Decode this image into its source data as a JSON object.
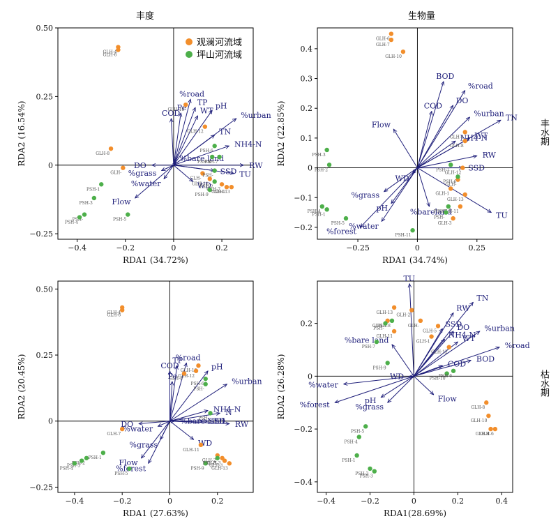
{
  "column_titles": [
    "丰度",
    "生物量"
  ],
  "row_titles": [
    "丰水期",
    "枯水期"
  ],
  "legend": [
    {
      "label": "观澜河流域",
      "color": "#f28e2b"
    },
    {
      "label": "坪山河流域",
      "color": "#4daf4a"
    }
  ],
  "colors": {
    "guanlan": "#f28e2b",
    "pingshan": "#4daf4a",
    "arrow": "#1f1f7a",
    "axis": "#000000"
  },
  "chart_data": [
    {
      "type": "scatter",
      "title": "丰度",
      "xlabel": "RDA1 (34.72%)",
      "ylabel": "RDA2 (16.54%)",
      "xlim": [
        -0.48,
        0.33
      ],
      "ylim": [
        -0.27,
        0.5
      ],
      "xticks": [
        -0.4,
        -0.2,
        0,
        0.2
      ],
      "yticks": [
        -0.25,
        0,
        0.25,
        0.5
      ],
      "tick_labels_x": [
        "−0.4",
        "−0.2",
        "0",
        "0.2"
      ],
      "tick_labels_y": [
        "−0.25",
        "0",
        "0.25",
        "0.50"
      ],
      "show_legend": true,
      "points": [
        {
          "label": "GLH-4",
          "x": -0.23,
          "y": 0.43,
          "g": "guanlan"
        },
        {
          "label": "GLH-6",
          "x": -0.23,
          "y": 0.42,
          "g": "guanlan"
        },
        {
          "label": "GLH-10",
          "x": 0.05,
          "y": 0.22,
          "g": "guanlan"
        },
        {
          "label": "GLH-12",
          "x": 0.13,
          "y": 0.14,
          "g": "guanlan"
        },
        {
          "label": "GLH-8",
          "x": -0.26,
          "y": 0.06,
          "g": "guanlan"
        },
        {
          "label": "GLH-",
          "x": -0.21,
          "y": -0.01,
          "g": "guanlan"
        },
        {
          "label": "GLH-",
          "x": 0.12,
          "y": -0.03,
          "g": "guanlan"
        },
        {
          "label": "GLH-11",
          "x": 0.15,
          "y": -0.05,
          "g": "guanlan"
        },
        {
          "label": "GLH-7",
          "x": 0.2,
          "y": -0.07,
          "g": "guanlan"
        },
        {
          "label": "GLH-1",
          "x": 0.22,
          "y": -0.08,
          "g": "guanlan"
        },
        {
          "label": "GLH-13",
          "x": 0.24,
          "y": -0.08,
          "g": "guanlan"
        },
        {
          "label": "PSH-6",
          "x": 0.17,
          "y": 0.07,
          "g": "pingshan"
        },
        {
          "label": "PSH-8",
          "x": 0.16,
          "y": 0.03,
          "g": "pingshan"
        },
        {
          "label": "PSH-7",
          "x": 0.19,
          "y": 0.03,
          "g": "pingshan"
        },
        {
          "label": "PSH-",
          "x": 0.17,
          "y": -0.02,
          "g": "pingshan"
        },
        {
          "label": "PSH-2",
          "x": 0.17,
          "y": -0.06,
          "g": "pingshan"
        },
        {
          "label": "PSH-9",
          "x": 0.15,
          "y": -0.09,
          "g": "pingshan"
        },
        {
          "label": "PSH-1",
          "x": -0.3,
          "y": -0.07,
          "g": "pingshan"
        },
        {
          "label": "PSH-3",
          "x": -0.33,
          "y": -0.12,
          "g": "pingshan"
        },
        {
          "label": "PSH-",
          "x": -0.37,
          "y": -0.18,
          "g": "pingshan"
        },
        {
          "label": "PSH-4",
          "x": -0.39,
          "y": -0.19,
          "g": "pingshan"
        },
        {
          "label": "PSH-5",
          "x": -0.19,
          "y": -0.18,
          "g": "pingshan"
        }
      ],
      "vectors": [
        {
          "label": "%road",
          "x": 0.07,
          "y": 0.24
        },
        {
          "label": "TP",
          "x": 0.09,
          "y": 0.21
        },
        {
          "label": "Pe",
          "x": 0.03,
          "y": 0.19
        },
        {
          "label": "COD",
          "x": -0.01,
          "y": 0.17
        },
        {
          "label": "WT",
          "x": 0.1,
          "y": 0.18
        },
        {
          "label": "pH",
          "x": 0.16,
          "y": 0.2
        },
        {
          "label": "%urban",
          "x": 0.26,
          "y": 0.17
        },
        {
          "label": "TN",
          "x": 0.17,
          "y": 0.11
        },
        {
          "label": "NH4-N",
          "x": 0.23,
          "y": 0.07
        },
        {
          "label": "%bare land",
          "x": 0.01,
          "y": 0.01
        },
        {
          "label": "RW",
          "x": 0.29,
          "y": 0.0
        },
        {
          "label": "TU",
          "x": 0.25,
          "y": -0.03
        },
        {
          "label": "SSD",
          "x": 0.17,
          "y": -0.02
        },
        {
          "label": "WD",
          "x": 0.08,
          "y": -0.06
        },
        {
          "label": "DO",
          "x": -0.09,
          "y": 0.0
        },
        {
          "label": "%grass",
          "x": -0.05,
          "y": -0.02
        },
        {
          "label": "%water",
          "x": -0.04,
          "y": -0.05
        },
        {
          "label": "Flow",
          "x": -0.16,
          "y": -0.12
        }
      ]
    },
    {
      "type": "scatter",
      "title": "生物量",
      "xlabel": "RDA1 (34.74%)",
      "ylabel": "RDA2 (22.85%)",
      "xlim": [
        -0.42,
        0.4
      ],
      "ylim": [
        -0.24,
        0.47
      ],
      "xticks": [
        -0.25,
        0,
        0.25
      ],
      "yticks": [
        -0.2,
        -0.1,
        0,
        0.1,
        0.2,
        0.3,
        0.4
      ],
      "tick_labels_x": [
        "−0.25",
        "0",
        "0.25"
      ],
      "tick_labels_y": [
        "−0.2",
        "−0.1",
        "0",
        "0.1",
        "0.2",
        "0.3",
        "0.4"
      ],
      "show_legend": false,
      "points": [
        {
          "label": "GLH-6",
          "x": -0.11,
          "y": 0.45,
          "g": "guanlan"
        },
        {
          "label": "GLH-7",
          "x": -0.11,
          "y": 0.43,
          "g": "guanlan"
        },
        {
          "label": "GLH-10",
          "x": -0.06,
          "y": 0.39,
          "g": "guanlan"
        },
        {
          "label": "GLH-4",
          "x": 0.2,
          "y": 0.12,
          "g": "guanlan"
        },
        {
          "label": "GLH-8",
          "x": 0.2,
          "y": 0.09,
          "g": "guanlan"
        },
        {
          "label": "GLH-12",
          "x": 0.19,
          "y": 0.0,
          "g": "guanlan"
        },
        {
          "label": "GLH-",
          "x": 0.17,
          "y": -0.04,
          "g": "guanlan"
        },
        {
          "label": "GLH-13",
          "x": 0.2,
          "y": -0.09,
          "g": "guanlan"
        },
        {
          "label": "GLH-11",
          "x": 0.18,
          "y": -0.13,
          "g": "guanlan"
        },
        {
          "label": "GLH-3",
          "x": 0.15,
          "y": -0.17,
          "g": "guanlan"
        },
        {
          "label": "GLH-1",
          "x": 0.14,
          "y": -0.07,
          "g": "guanlan"
        },
        {
          "label": "PSH-3",
          "x": -0.38,
          "y": 0.06,
          "g": "pingshan"
        },
        {
          "label": "PSH-2",
          "x": -0.37,
          "y": 0.01,
          "g": "pingshan"
        },
        {
          "label": "PSH-7",
          "x": 0.14,
          "y": 0.01,
          "g": "pingshan"
        },
        {
          "label": "PSH-6",
          "x": 0.17,
          "y": -0.03,
          "g": "pingshan"
        },
        {
          "label": "PSH-4",
          "x": -0.4,
          "y": -0.13,
          "g": "pingshan"
        },
        {
          "label": "PSH-1",
          "x": -0.38,
          "y": -0.14,
          "g": "pingshan"
        },
        {
          "label": "PSH-5",
          "x": -0.3,
          "y": -0.17,
          "g": "pingshan"
        },
        {
          "label": "PSH-11",
          "x": -0.02,
          "y": -0.21,
          "g": "pingshan"
        },
        {
          "label": "PSH-9",
          "x": 0.13,
          "y": -0.13,
          "g": "pingshan"
        },
        {
          "label": "PSH-",
          "x": 0.12,
          "y": -0.15,
          "g": "pingshan"
        }
      ],
      "vectors": [
        {
          "label": "BOD",
          "x": 0.11,
          "y": 0.29
        },
        {
          "label": "%road",
          "x": 0.2,
          "y": 0.26
        },
        {
          "label": "DO",
          "x": 0.15,
          "y": 0.21
        },
        {
          "label": "COD",
          "x": 0.06,
          "y": 0.19
        },
        {
          "label": "%urban",
          "x": 0.22,
          "y": 0.17
        },
        {
          "label": "TN",
          "x": 0.35,
          "y": 0.16
        },
        {
          "label": "Flow",
          "x": -0.1,
          "y": 0.13
        },
        {
          "label": "NH4-N",
          "x": 0.16,
          "y": 0.09
        },
        {
          "label": "WT",
          "x": 0.22,
          "y": 0.1
        },
        {
          "label": "RW",
          "x": 0.25,
          "y": 0.04
        },
        {
          "label": "SSD",
          "x": 0.19,
          "y": 0.0
        },
        {
          "label": "WD",
          "x": -0.02,
          "y": -0.02
        },
        {
          "label": "%grass",
          "x": -0.14,
          "y": -0.08
        },
        {
          "label": "pH",
          "x": -0.11,
          "y": -0.12
        },
        {
          "label": "%bareland",
          "x": 0.05,
          "y": -0.13
        },
        {
          "label": "%water",
          "x": -0.15,
          "y": -0.18
        },
        {
          "label": "%forest",
          "x": -0.24,
          "y": -0.2
        },
        {
          "label": "TU",
          "x": 0.31,
          "y": -0.15
        }
      ]
    },
    {
      "type": "scatter",
      "title": "",
      "xlabel": "RDA1 (27.63%)",
      "ylabel": "RDA2 (20.45%)",
      "xlim": [
        -0.47,
        0.35
      ],
      "ylim": [
        -0.27,
        0.53
      ],
      "xticks": [
        -0.4,
        -0.2,
        0,
        0.2
      ],
      "yticks": [
        -0.25,
        0,
        0.25,
        0.5
      ],
      "tick_labels_x": [
        "−0.4",
        "−0.2",
        "0",
        "0.2"
      ],
      "tick_labels_y": [
        "−0.25",
        "0",
        "0.25",
        "0.50"
      ],
      "show_legend": false,
      "points": [
        {
          "label": "GLH-4",
          "x": -0.2,
          "y": 0.43,
          "g": "guanlan"
        },
        {
          "label": "GLH-6",
          "x": -0.2,
          "y": 0.42,
          "g": "guanlan"
        },
        {
          "label": "GLH-10",
          "x": 0.12,
          "y": 0.21,
          "g": "guanlan"
        },
        {
          "label": "GLH-12",
          "x": 0.11,
          "y": 0.19,
          "g": "guanlan"
        },
        {
          "label": "GLH-8",
          "x": 0.06,
          "y": 0.18,
          "g": "guanlan"
        },
        {
          "label": "GLH-7",
          "x": -0.2,
          "y": -0.03,
          "g": "guanlan"
        },
        {
          "label": "GLH-11",
          "x": 0.13,
          "y": -0.09,
          "g": "guanlan"
        },
        {
          "label": "GLH-2",
          "x": 0.2,
          "y": -0.13,
          "g": "guanlan"
        },
        {
          "label": "GLH-3",
          "x": 0.22,
          "y": -0.14,
          "g": "guanlan"
        },
        {
          "label": "GLH-1",
          "x": 0.23,
          "y": -0.15,
          "g": "guanlan"
        },
        {
          "label": "GLH-13",
          "x": 0.25,
          "y": -0.16,
          "g": "guanlan"
        },
        {
          "label": "PSH-6",
          "x": 0.15,
          "y": 0.16,
          "g": "pingshan"
        },
        {
          "label": "PSH-",
          "x": 0.15,
          "y": 0.14,
          "g": "pingshan"
        },
        {
          "label": "PSH-",
          "x": 0.17,
          "y": 0.03,
          "g": "pingshan"
        },
        {
          "label": "PSH-1",
          "x": -0.28,
          "y": -0.12,
          "g": "pingshan"
        },
        {
          "label": "PSH-2",
          "x": -0.35,
          "y": -0.14,
          "g": "pingshan"
        },
        {
          "label": "PSH-3",
          "x": -0.37,
          "y": -0.15,
          "g": "pingshan"
        },
        {
          "label": "PSH-4",
          "x": -0.4,
          "y": -0.16,
          "g": "pingshan"
        },
        {
          "label": "PSH-5",
          "x": -0.17,
          "y": -0.18,
          "g": "pingshan"
        },
        {
          "label": "PSH-9",
          "x": 0.15,
          "y": -0.16,
          "g": "pingshan"
        },
        {
          "label": "PSH-8",
          "x": 0.2,
          "y": -0.14,
          "g": "pingshan"
        }
      ],
      "vectors": [
        {
          "label": "%road",
          "x": 0.07,
          "y": 0.22
        },
        {
          "label": "TP",
          "x": 0.03,
          "y": 0.21
        },
        {
          "label": "COD",
          "x": 0.0,
          "y": 0.19
        },
        {
          "label": "Pe",
          "x": 0.01,
          "y": 0.15
        },
        {
          "label": "pH",
          "x": 0.16,
          "y": 0.19
        },
        {
          "label": "%urban",
          "x": 0.24,
          "y": 0.14
        },
        {
          "label": "NH4-N",
          "x": 0.16,
          "y": 0.04
        },
        {
          "label": "N",
          "x": 0.21,
          "y": 0.03
        },
        {
          "label": "SSD",
          "x": 0.14,
          "y": 0.0
        },
        {
          "label": "TU",
          "x": 0.16,
          "y": 0.0
        },
        {
          "label": "%bare land",
          "x": 0.02,
          "y": 0.0
        },
        {
          "label": "RW",
          "x": 0.25,
          "y": -0.01
        },
        {
          "label": "DO",
          "x": -0.13,
          "y": -0.01
        },
        {
          "label": "%water",
          "x": -0.05,
          "y": -0.02
        },
        {
          "label": "WD",
          "x": 0.1,
          "y": -0.07
        },
        {
          "label": "%grass",
          "x": -0.04,
          "y": -0.07
        },
        {
          "label": "Flow",
          "x": -0.12,
          "y": -0.14
        },
        {
          "label": "%forest",
          "x": -0.09,
          "y": -0.16
        }
      ]
    },
    {
      "type": "scatter",
      "title": "",
      "xlabel": "RDA1(28.69%)",
      "ylabel": "RDA2 (26.28%)",
      "xlim": [
        -0.44,
        0.45
      ],
      "ylim": [
        -0.44,
        0.36
      ],
      "xticks": [
        -0.4,
        -0.2,
        0,
        0.2,
        0.4
      ],
      "yticks": [
        -0.4,
        -0.2,
        0,
        0.2
      ],
      "tick_labels_x": [
        "−0.4",
        "−0.2",
        "0",
        "0.2",
        "0.4"
      ],
      "tick_labels_y": [
        "−0.4",
        "−0.2",
        "0",
        "0.2"
      ],
      "show_legend": false,
      "points": [
        {
          "label": "GLH-13",
          "x": -0.09,
          "y": 0.26,
          "g": "guanlan"
        },
        {
          "label": "GLH-2",
          "x": -0.01,
          "y": 0.25,
          "g": "guanlan"
        },
        {
          "label": "GLH-3",
          "x": -0.12,
          "y": 0.21,
          "g": "guanlan"
        },
        {
          "label": "GLH-11",
          "x": -0.09,
          "y": 0.17,
          "g": "guanlan"
        },
        {
          "label": "GLH-",
          "x": 0.03,
          "y": 0.21,
          "g": "guanlan"
        },
        {
          "label": "GLH-5",
          "x": 0.11,
          "y": 0.19,
          "g": "guanlan"
        },
        {
          "label": "GLH-1",
          "x": 0.08,
          "y": 0.15,
          "g": "guanlan"
        },
        {
          "label": "GLH-12",
          "x": 0.16,
          "y": 0.11,
          "g": "guanlan"
        },
        {
          "label": "GLH-8",
          "x": 0.33,
          "y": -0.1,
          "g": "guanlan"
        },
        {
          "label": "GLH-10",
          "x": 0.34,
          "y": -0.15,
          "g": "guanlan"
        },
        {
          "label": "GLH-4",
          "x": 0.35,
          "y": -0.2,
          "g": "guanlan"
        },
        {
          "label": "GLH-6",
          "x": 0.37,
          "y": -0.2,
          "g": "guanlan"
        },
        {
          "label": "PSH-8",
          "x": -0.1,
          "y": 0.21,
          "g": "pingshan"
        },
        {
          "label": "PSH-",
          "x": -0.13,
          "y": 0.2,
          "g": "pingshan"
        },
        {
          "label": "PSH-7",
          "x": -0.17,
          "y": 0.13,
          "g": "pingshan"
        },
        {
          "label": "PSH-9",
          "x": -0.12,
          "y": 0.05,
          "g": "pingshan"
        },
        {
          "label": "PSH-10",
          "x": 0.15,
          "y": 0.01,
          "g": "pingshan"
        },
        {
          "label": "PSH-6",
          "x": 0.18,
          "y": 0.02,
          "g": "pingshan"
        },
        {
          "label": "PSH-5",
          "x": -0.22,
          "y": -0.19,
          "g": "pingshan"
        },
        {
          "label": "PSH-4",
          "x": -0.25,
          "y": -0.23,
          "g": "pingshan"
        },
        {
          "label": "PSH-1",
          "x": -0.26,
          "y": -0.3,
          "g": "pingshan"
        },
        {
          "label": "PSH-2",
          "x": -0.2,
          "y": -0.35,
          "g": "pingshan"
        },
        {
          "label": "PSH-3",
          "x": -0.18,
          "y": -0.36,
          "g": "pingshan"
        }
      ],
      "vectors": [
        {
          "label": "TU",
          "x": -0.02,
          "y": 0.35
        },
        {
          "label": "TN",
          "x": 0.27,
          "y": 0.28
        },
        {
          "label": "RW",
          "x": 0.18,
          "y": 0.24
        },
        {
          "label": "SSD",
          "x": 0.13,
          "y": 0.18
        },
        {
          "label": "DO",
          "x": 0.18,
          "y": 0.17
        },
        {
          "label": "%urban",
          "x": 0.3,
          "y": 0.17
        },
        {
          "label": "NH4-N",
          "x": 0.14,
          "y": 0.14
        },
        {
          "label": "WT",
          "x": 0.2,
          "y": 0.13
        },
        {
          "label": "%road",
          "x": 0.39,
          "y": 0.11
        },
        {
          "label": "BOD",
          "x": 0.26,
          "y": 0.06
        },
        {
          "label": "COD",
          "x": 0.13,
          "y": 0.04
        },
        {
          "label": "%bare land",
          "x": -0.1,
          "y": 0.12
        },
        {
          "label": "WD",
          "x": -0.02,
          "y": 0.0
        },
        {
          "label": "Flow",
          "x": 0.09,
          "y": -0.07
        },
        {
          "label": "%water",
          "x": -0.32,
          "y": -0.03
        },
        {
          "label": "%forest",
          "x": -0.36,
          "y": -0.1
        },
        {
          "label": "pH",
          "x": -0.15,
          "y": -0.08
        },
        {
          "label": "%grass",
          "x": -0.12,
          "y": -0.1
        }
      ]
    }
  ]
}
